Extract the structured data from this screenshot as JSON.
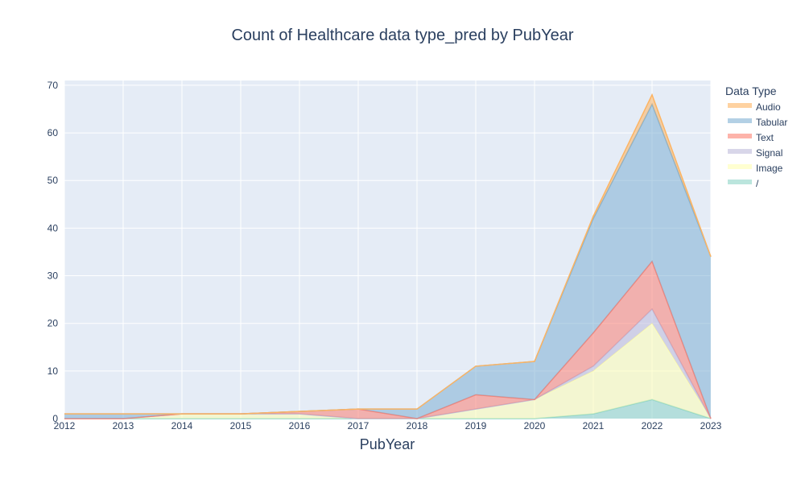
{
  "chart_data": {
    "type": "area",
    "title": "Count of Healthcare data type_pred by PubYear",
    "xlabel": "PubYear",
    "ylabel": "",
    "x": [
      2012,
      2013,
      2014,
      2015,
      2016,
      2017,
      2018,
      2019,
      2020,
      2021,
      2022,
      2023
    ],
    "ylim": [
      0,
      71
    ],
    "yticks": [
      0,
      10,
      20,
      30,
      40,
      50,
      60,
      70
    ],
    "stacked": true,
    "grid": true,
    "legend_title": "Data Type",
    "legend_position": "right",
    "series": [
      {
        "name": "/",
        "color": "#8dd3c7",
        "values": [
          0,
          0,
          0,
          0,
          0,
          0,
          0,
          0,
          0,
          1,
          4,
          0
        ]
      },
      {
        "name": "Image",
        "color": "#ffffb3",
        "values": [
          0,
          0,
          1,
          1,
          1,
          0,
          0,
          2,
          4,
          9,
          16,
          0
        ]
      },
      {
        "name": "Signal",
        "color": "#bebada",
        "values": [
          0,
          0,
          0,
          0,
          0,
          0,
          0,
          0,
          0,
          1,
          3,
          0
        ]
      },
      {
        "name": "Text",
        "color": "#fb8072",
        "values": [
          0,
          0,
          0,
          0,
          0.5,
          2,
          0,
          3,
          0,
          7,
          10,
          0
        ]
      },
      {
        "name": "Tabular",
        "color": "#80b1d3",
        "values": [
          1,
          1,
          0,
          0,
          0,
          0,
          2,
          6,
          8,
          24,
          33,
          34
        ]
      },
      {
        "name": "Audio",
        "color": "#fdb462",
        "values": [
          0,
          0,
          0,
          0,
          0,
          0,
          0,
          0,
          0,
          0.5,
          2,
          0
        ]
      }
    ],
    "legend_order": [
      "Audio",
      "Tabular",
      "Text",
      "Signal",
      "Image",
      "/"
    ],
    "plot_background": "#e5ecf6",
    "text_color": "#2a3f5f"
  }
}
